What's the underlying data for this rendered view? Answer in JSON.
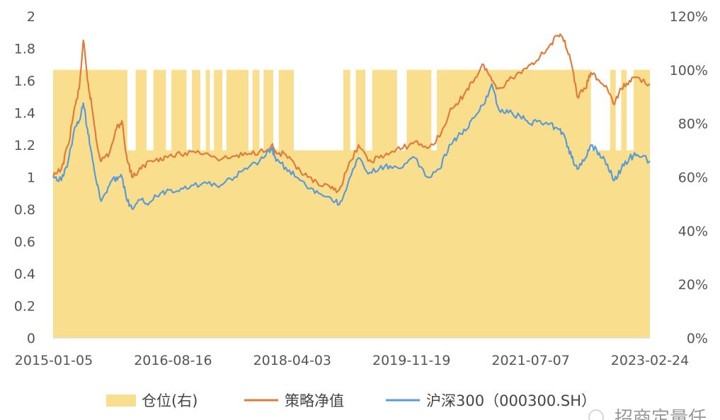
{
  "chart_data": {
    "type": "line",
    "title": "",
    "xlabel": "",
    "ylabel": "",
    "y_left": {
      "range": [
        0,
        2
      ],
      "ticks": [
        "0",
        "0.2",
        "0.4",
        "0.6",
        "0.8",
        "1",
        "1.2",
        "1.4",
        "1.6",
        "1.8",
        "2"
      ]
    },
    "y_right": {
      "range": [
        0,
        1.2
      ],
      "ticks": [
        "0%",
        "20%",
        "40%",
        "60%",
        "80%",
        "100%",
        "120%"
      ]
    },
    "x_ticks": [
      "2015-01-05",
      "2016-08-16",
      "2018-04-03",
      "2019-11-19",
      "2021-07-07",
      "2023-02-24"
    ],
    "x_range": [
      "2015-01-05",
      "2023-04-30"
    ],
    "grid": false,
    "legend": "bottom",
    "series": [
      {
        "name": "仓位(右)",
        "kind": "area",
        "axis": "right",
        "color": "#F9DE8E",
        "points": [
          [
            "2015-01-05",
            1.0
          ],
          [
            "2016-01-04",
            1.0
          ],
          [
            "2016-01-18",
            0.7
          ],
          [
            "2016-02-29",
            1.0
          ],
          [
            "2016-04-25",
            0.7
          ],
          [
            "2016-05-30",
            1.0
          ],
          [
            "2016-08-01",
            0.7
          ],
          [
            "2016-08-29",
            1.0
          ],
          [
            "2016-11-14",
            0.7
          ],
          [
            "2016-12-12",
            1.0
          ],
          [
            "2017-01-23",
            0.7
          ],
          [
            "2017-02-20",
            1.0
          ],
          [
            "2017-03-13",
            0.7
          ],
          [
            "2017-04-03",
            1.0
          ],
          [
            "2017-05-15",
            0.7
          ],
          [
            "2017-06-05",
            1.0
          ],
          [
            "2017-09-25",
            0.7
          ],
          [
            "2017-10-16",
            1.0
          ],
          [
            "2017-11-20",
            0.7
          ],
          [
            "2017-12-11",
            1.0
          ],
          [
            "2018-01-29",
            0.7
          ],
          [
            "2018-02-26",
            1.0
          ],
          [
            "2018-05-14",
            0.7
          ],
          [
            "2018-07-09",
            0.7
          ],
          [
            "2018-09-10",
            0.7
          ],
          [
            "2018-12-17",
            0.7
          ],
          [
            "2019-01-21",
            1.0
          ],
          [
            "2019-02-25",
            0.7
          ],
          [
            "2019-03-25",
            1.0
          ],
          [
            "2019-05-13",
            0.7
          ],
          [
            "2019-06-17",
            1.0
          ],
          [
            "2019-10-21",
            0.7
          ],
          [
            "2019-12-09",
            1.0
          ],
          [
            "2020-04-13",
            0.7
          ],
          [
            "2020-05-11",
            1.0
          ],
          [
            "2022-06-20",
            1.0
          ],
          [
            "2022-07-04",
            0.7
          ],
          [
            "2022-10-10",
            1.0
          ],
          [
            "2022-11-07",
            0.7
          ],
          [
            "2022-12-05",
            1.0
          ],
          [
            "2023-01-02",
            0.7
          ],
          [
            "2023-02-06",
            1.0
          ],
          [
            "2023-04-30",
            1.0
          ]
        ]
      },
      {
        "name": "策略净值",
        "kind": "line",
        "axis": "left",
        "color": "#E07B39",
        "points": [
          [
            "2015-01-05",
            1.0
          ],
          [
            "2015-02-16",
            1.05
          ],
          [
            "2015-03-23",
            1.2
          ],
          [
            "2015-04-20",
            1.4
          ],
          [
            "2015-05-18",
            1.55
          ],
          [
            "2015-06-08",
            1.85
          ],
          [
            "2015-06-29",
            1.6
          ],
          [
            "2015-07-20",
            1.45
          ],
          [
            "2015-08-17",
            1.2
          ],
          [
            "2015-09-07",
            1.1
          ],
          [
            "2015-10-19",
            1.15
          ],
          [
            "2015-11-23",
            1.3
          ],
          [
            "2015-12-21",
            1.35
          ],
          [
            "2016-01-18",
            1.1
          ],
          [
            "2016-02-15",
            1.0
          ],
          [
            "2016-03-28",
            1.05
          ],
          [
            "2016-05-09",
            1.1
          ],
          [
            "2016-07-04",
            1.12
          ],
          [
            "2016-08-16",
            1.13
          ],
          [
            "2016-10-17",
            1.14
          ],
          [
            "2016-12-19",
            1.16
          ],
          [
            "2017-02-27",
            1.15
          ],
          [
            "2017-05-08",
            1.11
          ],
          [
            "2017-07-17",
            1.13
          ],
          [
            "2017-09-18",
            1.14
          ],
          [
            "2017-11-20",
            1.16
          ],
          [
            "2018-01-22",
            1.2
          ],
          [
            "2018-02-12",
            1.15
          ],
          [
            "2018-04-03",
            1.14
          ],
          [
            "2018-05-28",
            1.05
          ],
          [
            "2018-07-23",
            1.0
          ],
          [
            "2018-09-17",
            0.95
          ],
          [
            "2018-11-19",
            0.93
          ],
          [
            "2018-12-31",
            0.92
          ],
          [
            "2019-02-11",
            1.05
          ],
          [
            "2019-04-08",
            1.2
          ],
          [
            "2019-05-27",
            1.1
          ],
          [
            "2019-07-22",
            1.12
          ],
          [
            "2019-09-16",
            1.15
          ],
          [
            "2019-11-19",
            1.18
          ],
          [
            "2020-01-20",
            1.22
          ],
          [
            "2020-03-23",
            1.18
          ],
          [
            "2020-05-25",
            1.25
          ],
          [
            "2020-07-13",
            1.4
          ],
          [
            "2020-08-24",
            1.45
          ],
          [
            "2020-10-12",
            1.55
          ],
          [
            "2020-11-23",
            1.62
          ],
          [
            "2021-01-04",
            1.7
          ],
          [
            "2021-02-15",
            1.6
          ],
          [
            "2021-03-22",
            1.55
          ],
          [
            "2021-05-10",
            1.6
          ],
          [
            "2021-07-07",
            1.65
          ],
          [
            "2021-08-30",
            1.7
          ],
          [
            "2021-10-18",
            1.75
          ],
          [
            "2021-12-06",
            1.82
          ],
          [
            "2022-01-17",
            1.88
          ],
          [
            "2022-02-21",
            1.85
          ],
          [
            "2022-03-28",
            1.7
          ],
          [
            "2022-04-25",
            1.5
          ],
          [
            "2022-06-06",
            1.55
          ],
          [
            "2022-07-04",
            1.65
          ],
          [
            "2022-08-15",
            1.6
          ],
          [
            "2022-09-26",
            1.55
          ],
          [
            "2022-10-31",
            1.45
          ],
          [
            "2022-12-05",
            1.55
          ],
          [
            "2023-01-16",
            1.6
          ],
          [
            "2023-02-24",
            1.62
          ],
          [
            "2023-04-30",
            1.58
          ]
        ]
      },
      {
        "name": "沪深300（000300.SH）",
        "kind": "line",
        "axis": "left",
        "color": "#5B9BD5",
        "points": [
          [
            "2015-01-05",
            1.0
          ],
          [
            "2015-02-16",
            0.98
          ],
          [
            "2015-03-23",
            1.1
          ],
          [
            "2015-04-20",
            1.28
          ],
          [
            "2015-05-18",
            1.35
          ],
          [
            "2015-06-08",
            1.46
          ],
          [
            "2015-06-29",
            1.3
          ],
          [
            "2015-07-20",
            1.15
          ],
          [
            "2015-08-17",
            0.95
          ],
          [
            "2015-09-07",
            0.85
          ],
          [
            "2015-10-19",
            0.95
          ],
          [
            "2015-11-23",
            1.0
          ],
          [
            "2015-12-21",
            1.0
          ],
          [
            "2016-01-18",
            0.85
          ],
          [
            "2016-02-15",
            0.8
          ],
          [
            "2016-03-28",
            0.86
          ],
          [
            "2016-05-09",
            0.84
          ],
          [
            "2016-07-04",
            0.9
          ],
          [
            "2016-08-16",
            0.92
          ],
          [
            "2016-10-17",
            0.93
          ],
          [
            "2016-12-19",
            0.95
          ],
          [
            "2017-02-27",
            0.96
          ],
          [
            "2017-05-08",
            0.95
          ],
          [
            "2017-07-17",
            1.0
          ],
          [
            "2017-09-18",
            1.05
          ],
          [
            "2017-11-20",
            1.1
          ],
          [
            "2018-01-22",
            1.18
          ],
          [
            "2018-02-12",
            1.1
          ],
          [
            "2018-04-03",
            1.06
          ],
          [
            "2018-05-28",
            1.0
          ],
          [
            "2018-07-23",
            0.93
          ],
          [
            "2018-09-17",
            0.9
          ],
          [
            "2018-11-19",
            0.87
          ],
          [
            "2018-12-31",
            0.83
          ],
          [
            "2019-02-11",
            0.95
          ],
          [
            "2019-04-08",
            1.12
          ],
          [
            "2019-05-27",
            1.02
          ],
          [
            "2019-07-22",
            1.05
          ],
          [
            "2019-09-16",
            1.07
          ],
          [
            "2019-11-19",
            1.06
          ],
          [
            "2020-01-20",
            1.12
          ],
          [
            "2020-03-23",
            1.0
          ],
          [
            "2020-05-25",
            1.05
          ],
          [
            "2020-07-13",
            1.2
          ],
          [
            "2020-08-24",
            1.25
          ],
          [
            "2020-10-12",
            1.3
          ],
          [
            "2020-11-23",
            1.38
          ],
          [
            "2021-01-04",
            1.45
          ],
          [
            "2021-02-15",
            1.58
          ],
          [
            "2021-03-22",
            1.42
          ],
          [
            "2021-05-10",
            1.4
          ],
          [
            "2021-07-07",
            1.38
          ],
          [
            "2021-08-30",
            1.33
          ],
          [
            "2021-10-18",
            1.35
          ],
          [
            "2021-12-06",
            1.33
          ],
          [
            "2022-01-17",
            1.3
          ],
          [
            "2022-02-21",
            1.25
          ],
          [
            "2022-03-28",
            1.12
          ],
          [
            "2022-04-25",
            1.05
          ],
          [
            "2022-06-06",
            1.12
          ],
          [
            "2022-07-04",
            1.2
          ],
          [
            "2022-08-15",
            1.15
          ],
          [
            "2022-09-26",
            1.08
          ],
          [
            "2022-10-31",
            0.98
          ],
          [
            "2022-12-05",
            1.05
          ],
          [
            "2023-01-16",
            1.12
          ],
          [
            "2023-02-24",
            1.14
          ],
          [
            "2023-04-30",
            1.1
          ]
        ]
      }
    ],
    "legend_entries": [
      "仓位(右)",
      "策略净值",
      "沪深300（000300.SH）"
    ],
    "watermark": "招商定量任"
  }
}
